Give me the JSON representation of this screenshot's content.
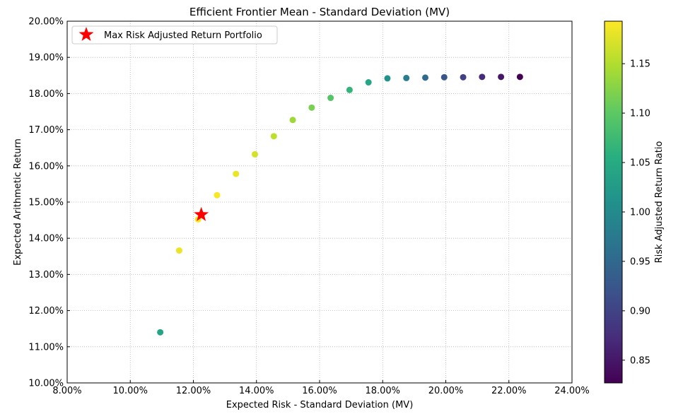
{
  "chart_data": {
    "type": "scatter",
    "title": "Efficient Frontier Mean - Standard Deviation (MV)",
    "xlabel": "Expected Risk - Standard Deviation (MV)",
    "ylabel": "Expected Arithmetic Return",
    "xlim": [
      0.08,
      0.24
    ],
    "ylim": [
      0.1,
      0.2
    ],
    "x_ticks": [
      0.08,
      0.1,
      0.12,
      0.14,
      0.16,
      0.18,
      0.2,
      0.22,
      0.24
    ],
    "x_tick_labels": [
      "8.00%",
      "10.00%",
      "12.00%",
      "14.00%",
      "16.00%",
      "18.00%",
      "20.00%",
      "22.00%",
      "24.00%"
    ],
    "y_ticks": [
      0.1,
      0.11,
      0.12,
      0.13,
      0.14,
      0.15,
      0.16,
      0.17,
      0.18,
      0.19,
      0.2
    ],
    "y_tick_labels": [
      "10.00%",
      "11.00%",
      "12.00%",
      "13.00%",
      "14.00%",
      "15.00%",
      "16.00%",
      "17.00%",
      "18.00%",
      "19.00%",
      "20.00%"
    ],
    "grid": true,
    "colormap": "viridis",
    "colorbar": {
      "label": "Risk Adjusted Return Ratio",
      "range": [
        0.827,
        1.193
      ],
      "ticks": [
        0.85,
        0.9,
        0.95,
        1.0,
        1.05,
        1.1,
        1.15
      ],
      "tick_labels": [
        "0.85",
        "0.90",
        "0.95",
        "1.00",
        "1.05",
        "1.10",
        "1.15"
      ]
    },
    "points": [
      {
        "x": 0.1095,
        "y": 0.114,
        "ratio": 1.041
      },
      {
        "x": 0.1155,
        "y": 0.1366,
        "ratio": 1.183
      },
      {
        "x": 0.1215,
        "y": 0.1452,
        "ratio": 1.193
      },
      {
        "x": 0.1275,
        "y": 0.1519,
        "ratio": 1.191
      },
      {
        "x": 0.1335,
        "y": 0.1578,
        "ratio": 1.182
      },
      {
        "x": 0.1395,
        "y": 0.1632,
        "ratio": 1.17
      },
      {
        "x": 0.1455,
        "y": 0.1682,
        "ratio": 1.156
      },
      {
        "x": 0.1515,
        "y": 0.1727,
        "ratio": 1.14
      },
      {
        "x": 0.1575,
        "y": 0.1761,
        "ratio": 1.118
      },
      {
        "x": 0.1635,
        "y": 0.1788,
        "ratio": 1.094
      },
      {
        "x": 0.1695,
        "y": 0.181,
        "ratio": 1.068
      },
      {
        "x": 0.1755,
        "y": 0.1831,
        "ratio": 1.043
      },
      {
        "x": 0.1815,
        "y": 0.1842,
        "ratio": 1.015
      },
      {
        "x": 0.1875,
        "y": 0.1843,
        "ratio": 0.983
      },
      {
        "x": 0.1935,
        "y": 0.1844,
        "ratio": 0.953
      },
      {
        "x": 0.1995,
        "y": 0.1845,
        "ratio": 0.925
      },
      {
        "x": 0.2055,
        "y": 0.1845,
        "ratio": 0.898
      },
      {
        "x": 0.2115,
        "y": 0.1846,
        "ratio": 0.873
      },
      {
        "x": 0.2175,
        "y": 0.1846,
        "ratio": 0.849
      },
      {
        "x": 0.2235,
        "y": 0.1846,
        "ratio": 0.827
      }
    ],
    "highlight": {
      "name": "Max Risk Adjusted Return Portfolio",
      "x": 0.1225,
      "y": 0.1465,
      "marker": "star",
      "color": "#ff0000"
    },
    "legend": {
      "position": "top-left",
      "entries": [
        "Max Risk Adjusted Return Portfolio"
      ]
    }
  }
}
